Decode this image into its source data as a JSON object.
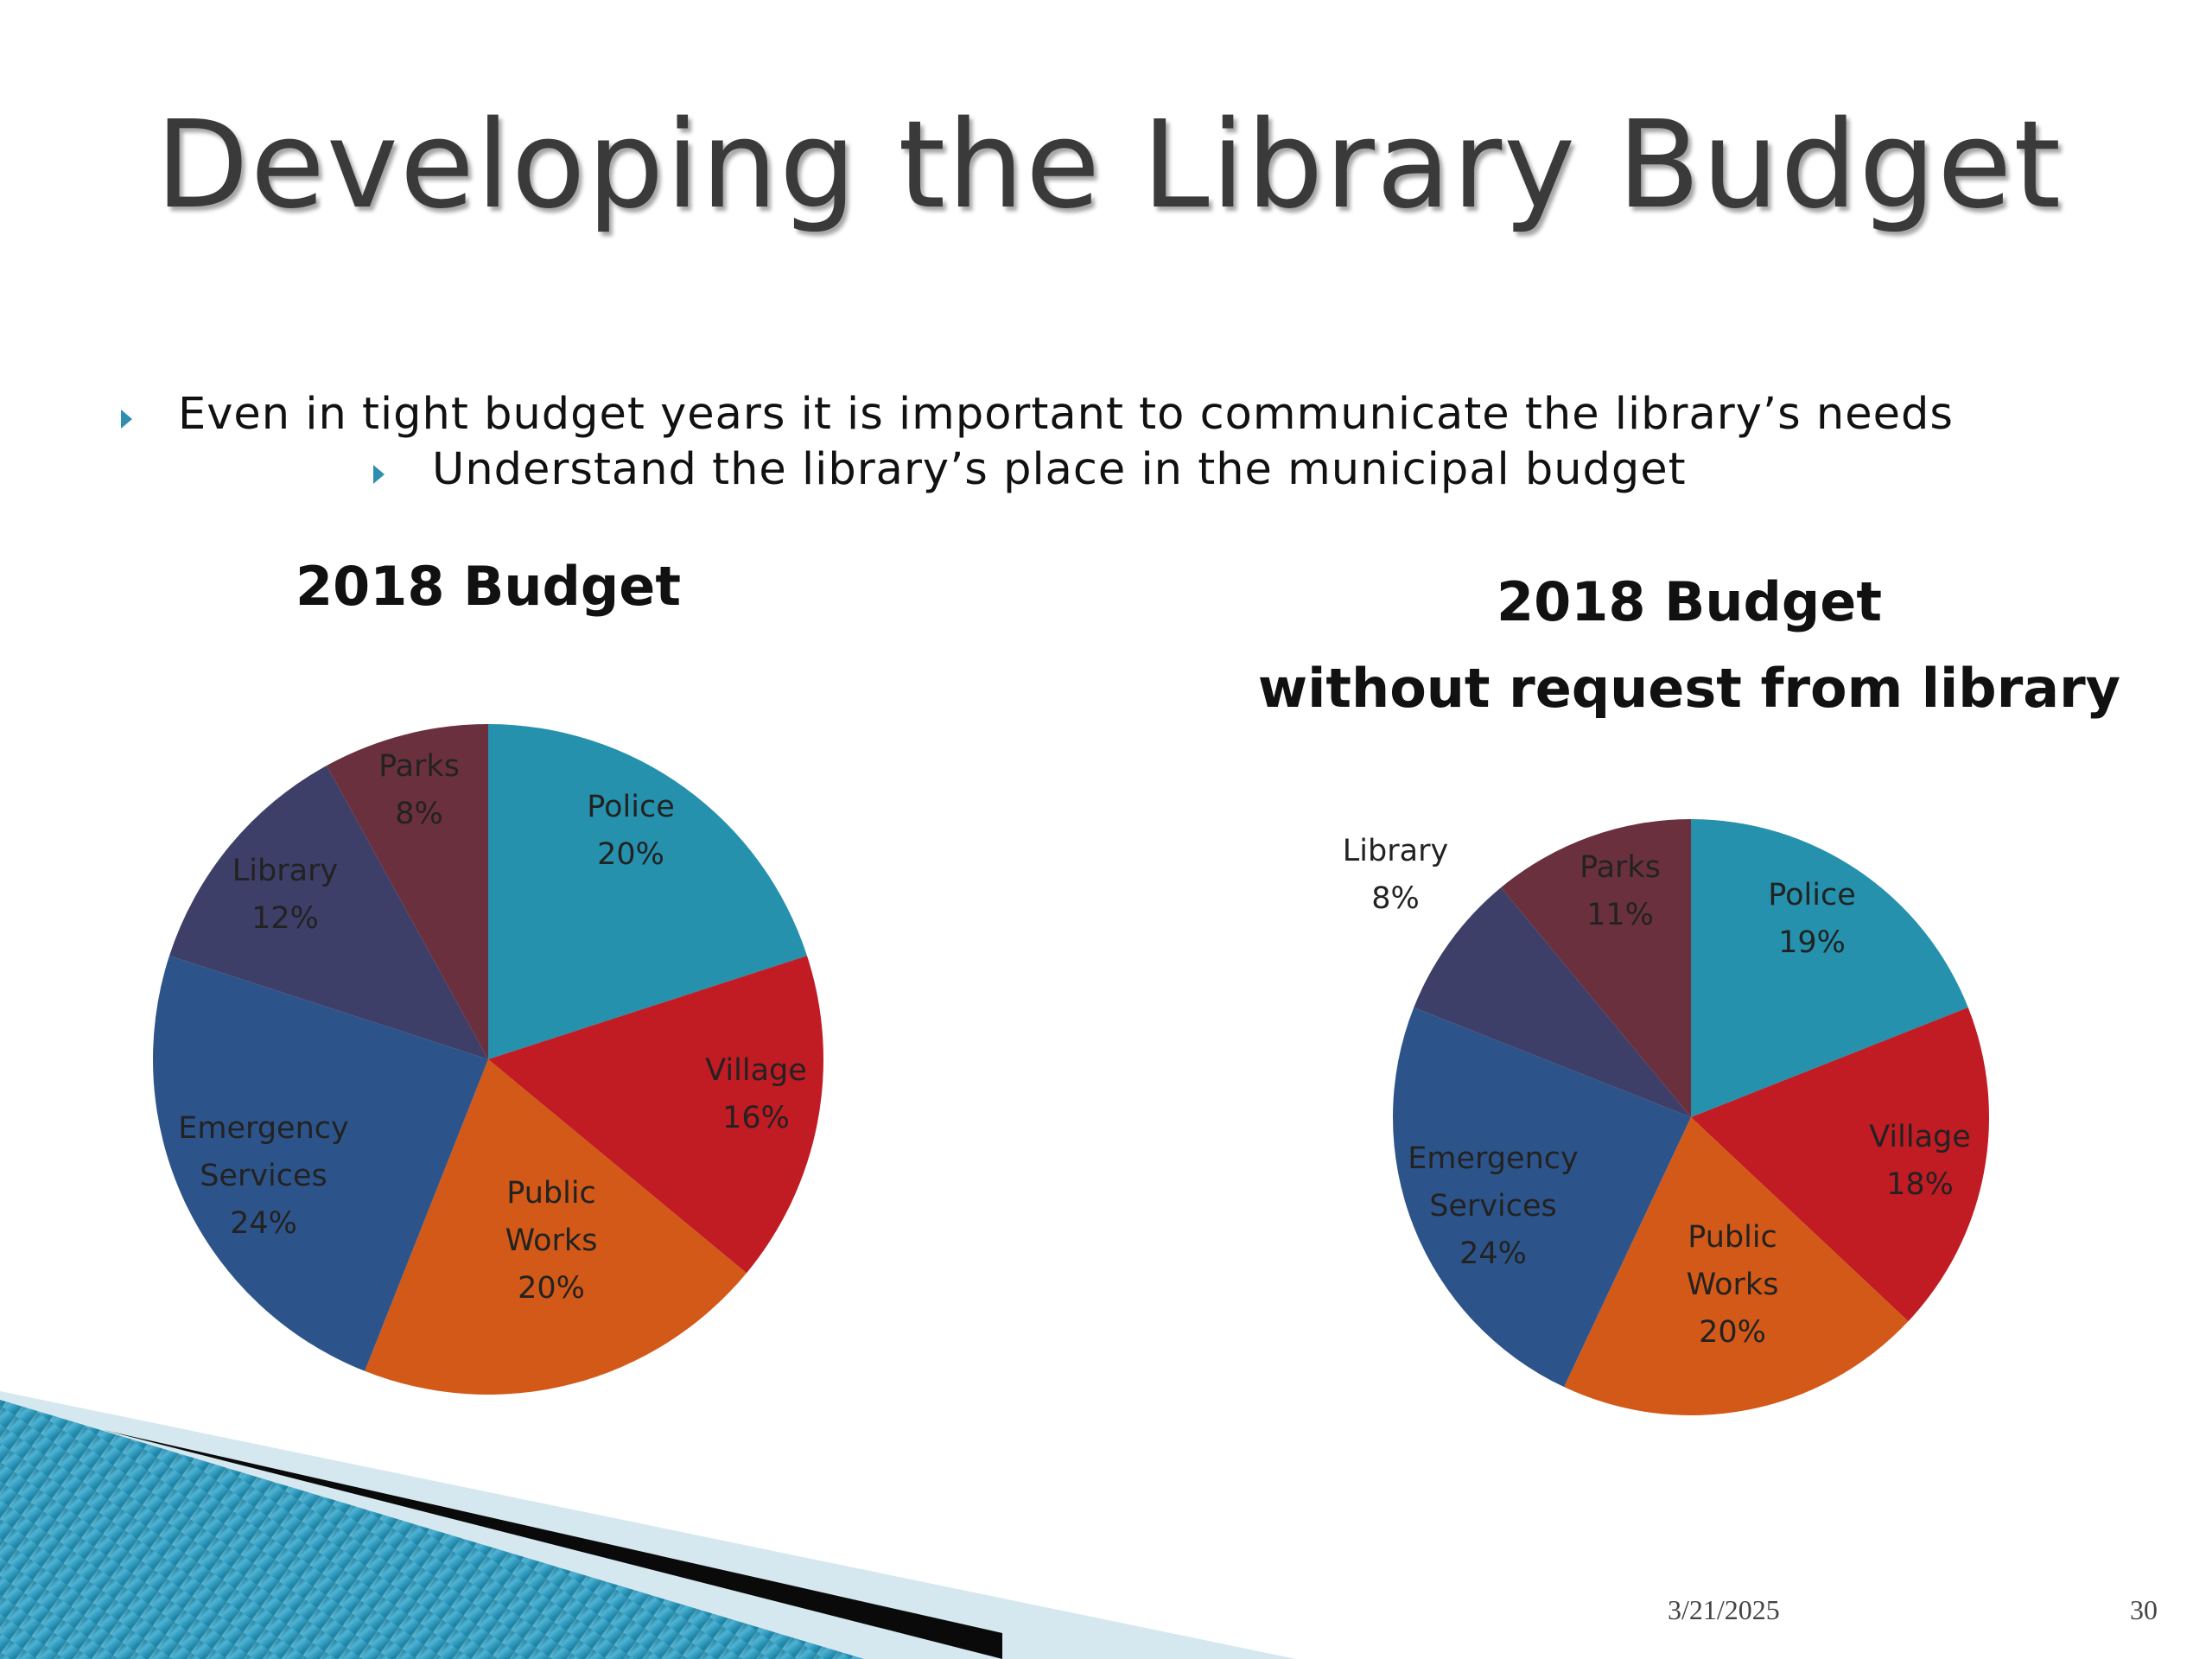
{
  "slide": {
    "title": "Developing the Library Budget",
    "bullets": [
      "Even in tight budget years it is important to communicate the library’s needs",
      "Understand the library’s place in the municipal budget"
    ],
    "footer_date": "3/21/2025",
    "page_number": "30"
  },
  "colors": {
    "police": "#2591ad",
    "village": "#c11b23",
    "public_works": "#d35918",
    "emergency_services": "#2d548a",
    "library": "#3d3f68",
    "parks": "#6b303e",
    "accent": "#2e8fb0"
  },
  "chart_data": [
    {
      "type": "pie",
      "title": "2018 Budget",
      "subtitle": "",
      "slices": [
        {
          "label": [
            "Police"
          ],
          "value": 20,
          "value_label": "20%",
          "color": "#2591ad"
        },
        {
          "label": [
            "Village"
          ],
          "value": 16,
          "value_label": "16%",
          "color": "#c11b23"
        },
        {
          "label": [
            "Public",
            "Works"
          ],
          "value": 20,
          "value_label": "20%",
          "color": "#d35918"
        },
        {
          "label": [
            "Emergency",
            "Services"
          ],
          "value": 24,
          "value_label": "24%",
          "color": "#2d548a"
        },
        {
          "label": [
            "Library"
          ],
          "value": 12,
          "value_label": "12%",
          "color": "#3d3f68"
        },
        {
          "label": [
            "Parks"
          ],
          "value": 8,
          "value_label": "8%",
          "color": "#6b303e"
        }
      ],
      "legend": "none",
      "data_labels": "inside"
    },
    {
      "type": "pie",
      "title": "2018 Budget",
      "subtitle": "without request from library",
      "slices": [
        {
          "label": [
            "Police"
          ],
          "value": 19,
          "value_label": "19%",
          "color": "#2591ad"
        },
        {
          "label": [
            "Village"
          ],
          "value": 18,
          "value_label": "18%",
          "color": "#c11b23"
        },
        {
          "label": [
            "Public",
            "Works"
          ],
          "value": 20,
          "value_label": "20%",
          "color": "#d35918"
        },
        {
          "label": [
            "Emergency",
            "Services"
          ],
          "value": 24,
          "value_label": "24%",
          "color": "#2d548a"
        },
        {
          "label": [
            "Library"
          ],
          "value": 8,
          "value_label": "8%",
          "color": "#3d3f68"
        },
        {
          "label": [
            "Parks"
          ],
          "value": 11,
          "value_label": "11%",
          "color": "#6b303e"
        }
      ],
      "legend": "none",
      "data_labels": "inside; Library label outside"
    }
  ]
}
